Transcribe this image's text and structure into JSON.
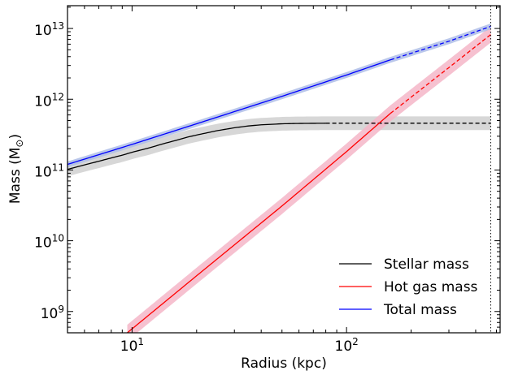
{
  "chart_data": {
    "type": "line",
    "xscale": "log",
    "yscale": "log",
    "xlabel": "Radius (kpc)",
    "ylabel_main": "Mass (M",
    "ylabel_symbol": "⊙",
    "ylabel_close": ")",
    "xlim": [
      5,
      520
    ],
    "ylim": [
      500000000.0,
      21000000000000.0
    ],
    "x_ticks": [
      {
        "value": 10,
        "base": "10",
        "exp": "1"
      },
      {
        "value": 100,
        "base": "10",
        "exp": "2"
      }
    ],
    "y_ticks": [
      {
        "value": 1000000000.0,
        "base": "10",
        "exp": "9"
      },
      {
        "value": 10000000000.0,
        "base": "10",
        "exp": "10"
      },
      {
        "value": 100000000000.0,
        "base": "10",
        "exp": "11"
      },
      {
        "value": 1000000000000.0,
        "base": "10",
        "exp": "12"
      },
      {
        "value": 10000000000000.0,
        "base": "10",
        "exp": "13"
      }
    ],
    "vline_x": 470,
    "series": [
      {
        "name": "Stellar mass",
        "color": "#000000",
        "band_color": "#d0d0d0",
        "band_factor": 1.25,
        "solid_until": 80,
        "x": [
          5,
          6,
          7,
          8,
          9,
          10,
          12,
          14,
          16,
          18,
          20,
          25,
          30,
          35,
          40,
          50,
          60,
          80,
          100,
          150,
          200,
          300,
          470
        ],
        "y": [
          102000000000.0,
          118000000000.0,
          133000000000.0,
          148000000000.0,
          162000000000.0,
          178000000000.0,
          205000000000.0,
          235000000000.0,
          262000000000.0,
          290000000000.0,
          312000000000.0,
          360000000000.0,
          395000000000.0,
          420000000000.0,
          435000000000.0,
          450000000000.0,
          455000000000.0,
          458000000000.0,
          458000000000.0,
          458000000000.0,
          458000000000.0,
          458000000000.0,
          458000000000.0
        ]
      },
      {
        "name": "Hot gas mass",
        "color": "#ff0000",
        "band_color": "#f4b6c8",
        "band_factor": 1.3,
        "solid_until": 160,
        "x": [
          9.5,
          20,
          50,
          100,
          160,
          300,
          470
        ],
        "y": [
          500000000.0,
          3200000000.0,
          31000000000.0,
          182000000000.0,
          630000000000.0,
          2800000000000.0,
          8200000000000.0
        ]
      },
      {
        "name": "Total mass",
        "color": "#0000ff",
        "band_color": "#aebde8",
        "band_factor": 1.1,
        "solid_until": 160,
        "x": [
          5,
          10,
          20,
          50,
          100,
          160,
          300,
          470
        ],
        "y": [
          120000000000.0,
          230000000000.0,
          450000000000.0,
          1100000000000.0,
          2200000000000.0,
          3600000000000.0,
          6600000000000.0,
          10700000000000.0
        ]
      }
    ],
    "legend": {
      "location": "lower-right"
    }
  }
}
